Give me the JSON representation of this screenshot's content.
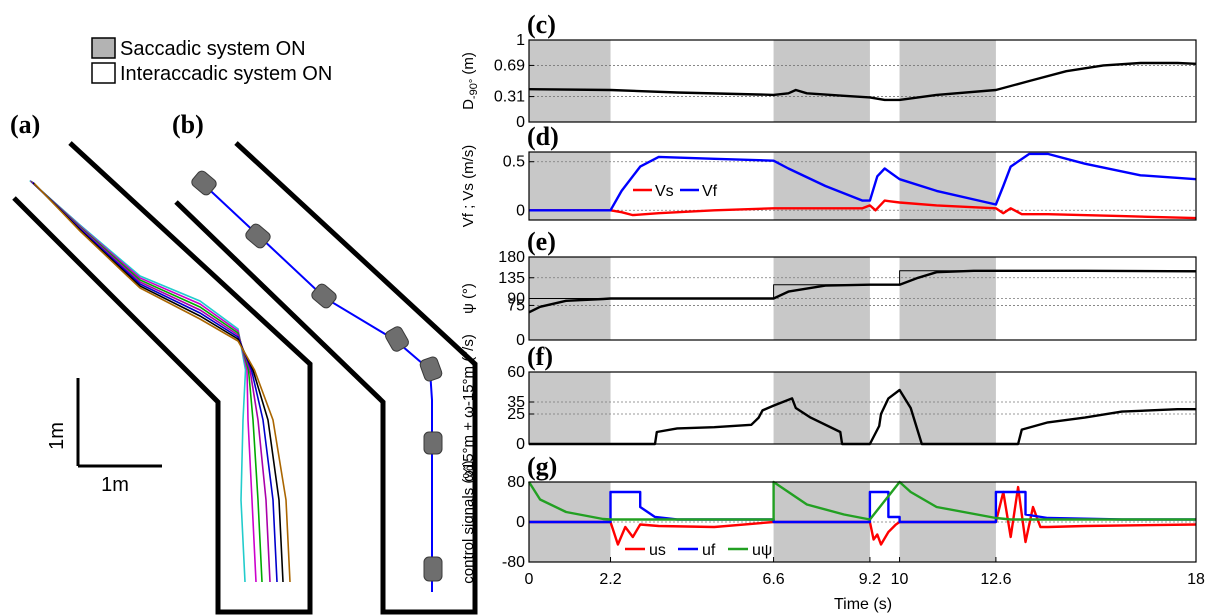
{
  "legend": {
    "saccadic_label": "Saccadic system ON",
    "intersaccadic_label": "Interaccadic system ON",
    "saccadic_color": "#b3b3b3"
  },
  "panel_labels": {
    "a": "(a)",
    "b": "(b)",
    "c": "(c)",
    "d": "(d)",
    "e": "(e)",
    "f": "(f)",
    "g": "(g)"
  },
  "scale_bar": {
    "vertical_label": "1m",
    "horizontal_label": "1m"
  },
  "xlabel": "Time (s)",
  "x_ticks": [
    "0",
    "2.2",
    "6.6",
    "9.2",
    "10",
    "12.6",
    "18"
  ],
  "saccadic_intervals": [
    [
      0,
      2.2
    ],
    [
      6.6,
      9.2
    ],
    [
      10,
      12.6
    ]
  ],
  "colors": {
    "black": "#000000",
    "red": "#ff0000",
    "blue": "#0000ff",
    "green": "#22a022",
    "shade": "#c8c8c8"
  },
  "chart_data": [
    {
      "panel": "(c)",
      "type": "line",
      "ylabel": "D-90° (m)",
      "ylabel_main": "D",
      "ylabel_sub": "-90°",
      "ylabel_unit": " (m)",
      "ylim": [
        0,
        1
      ],
      "yticks": [
        "0",
        "0.31",
        "0.69",
        "1"
      ],
      "grid_y": [
        0.31,
        0.69
      ],
      "series": [
        {
          "color": "#000000",
          "x": [
            0,
            2.2,
            4,
            6.6,
            7,
            7.2,
            7.5,
            8.5,
            9.2,
            9.6,
            10,
            11,
            12.6,
            13.5,
            14.5,
            15.5,
            16.5,
            17.5,
            18
          ],
          "y": [
            0.4,
            0.39,
            0.36,
            0.33,
            0.35,
            0.39,
            0.35,
            0.32,
            0.3,
            0.27,
            0.27,
            0.33,
            0.39,
            0.5,
            0.62,
            0.69,
            0.72,
            0.72,
            0.71
          ]
        }
      ]
    },
    {
      "panel": "(d)",
      "type": "line",
      "ylabel": "Vf ; Vs (m/s)",
      "ylim": [
        -0.1,
        0.6
      ],
      "yticks": [
        "0",
        "0.5"
      ],
      "grid_y": [
        0,
        0.5
      ],
      "legend": [
        "Vs",
        "Vf"
      ],
      "series": [
        {
          "name": "Vs",
          "color": "#ff0000",
          "x": [
            0,
            2.2,
            2.5,
            2.8,
            3.5,
            5,
            6.6,
            8,
            9,
            9.2,
            9.35,
            9.6,
            10,
            11,
            12.6,
            12.8,
            13,
            13.3,
            14,
            16,
            18
          ],
          "y": [
            0,
            0,
            -0.02,
            -0.05,
            -0.03,
            0,
            0.02,
            0.02,
            0.02,
            0.05,
            0,
            0.1,
            0.08,
            0.05,
            0.02,
            -0.03,
            0.02,
            -0.04,
            -0.04,
            -0.06,
            -0.08
          ]
        },
        {
          "name": "Vf",
          "color": "#0000ff",
          "x": [
            0,
            2.2,
            2.5,
            3,
            3.5,
            5,
            6.6,
            7,
            8,
            9,
            9.2,
            9.4,
            9.6,
            10,
            11,
            12.6,
            12.8,
            13,
            13.5,
            14,
            15,
            16.5,
            18
          ],
          "y": [
            0,
            0,
            0.2,
            0.45,
            0.55,
            0.53,
            0.51,
            0.43,
            0.25,
            0.1,
            0.1,
            0.35,
            0.43,
            0.32,
            0.2,
            0.06,
            0.25,
            0.45,
            0.58,
            0.58,
            0.48,
            0.36,
            0.32
          ]
        }
      ]
    },
    {
      "panel": "(e)",
      "type": "line",
      "ylabel": "ψ (°)",
      "ylim": [
        0,
        180
      ],
      "yticks": [
        "0",
        "75",
        "90",
        "135",
        "180"
      ],
      "grid_y": [
        75,
        90,
        135
      ],
      "series": [
        {
          "name": "psi_ref",
          "color": "#000000",
          "thin": true,
          "x": [
            0,
            6.6,
            6.6,
            10,
            10,
            18
          ],
          "y": [
            90,
            90,
            120,
            120,
            150,
            150
          ]
        },
        {
          "name": "psi",
          "color": "#000000",
          "x": [
            0,
            0.3,
            1,
            2,
            2.2,
            4,
            6.6,
            7,
            8,
            9.2,
            10,
            10.5,
            11,
            12,
            12.6,
            15,
            18
          ],
          "y": [
            60,
            72,
            85,
            89,
            90,
            90,
            90,
            105,
            118,
            120,
            120,
            135,
            147,
            150,
            150,
            150,
            149
          ]
        }
      ]
    },
    {
      "panel": "(f)",
      "type": "line",
      "ylabel": "ω15°m + ω-15°m (°/s)",
      "ylim": [
        0,
        60
      ],
      "yticks": [
        "0",
        "25",
        "35",
        "60"
      ],
      "grid_y": [
        25,
        35
      ],
      "series": [
        {
          "color": "#000000",
          "x": [
            0,
            3.4,
            3.45,
            4,
            5,
            6,
            6.2,
            6.3,
            6.6,
            7.1,
            7.2,
            7.6,
            8.4,
            8.45,
            9.2,
            9.45,
            9.5,
            9.7,
            10,
            10.3,
            10.6,
            12.6,
            13.2,
            13.3,
            14,
            15,
            16,
            17.5,
            18
          ],
          "y": [
            0,
            0,
            10,
            13,
            14,
            16,
            22,
            28,
            32,
            38,
            30,
            22,
            10,
            0,
            0,
            15,
            25,
            38,
            45,
            30,
            0,
            0,
            0,
            12,
            18,
            22,
            27,
            29,
            29
          ]
        }
      ]
    },
    {
      "panel": "(g)",
      "type": "line",
      "ylabel": "control signals (%)",
      "ylim": [
        -80,
        80
      ],
      "yticks": [
        "-80",
        "0",
        "80"
      ],
      "grid_y": [
        0
      ],
      "legend": [
        "us",
        "uf",
        "uψ"
      ],
      "series": [
        {
          "name": "us",
          "color": "#ff0000",
          "x": [
            0,
            2.2,
            2.4,
            2.6,
            2.8,
            3,
            3.5,
            5,
            6.6,
            9.2,
            9.3,
            9.4,
            9.5,
            9.7,
            9.9,
            10,
            12.6,
            12.8,
            13,
            13.2,
            13.4,
            13.6,
            13.8,
            14,
            15,
            18
          ],
          "y": [
            0,
            0,
            -45,
            -10,
            -30,
            -5,
            -8,
            -10,
            0,
            0,
            -35,
            -25,
            -45,
            -20,
            -5,
            0,
            0,
            60,
            -30,
            70,
            -40,
            30,
            -10,
            -10,
            -8,
            -5
          ]
        },
        {
          "name": "uf",
          "color": "#0000ff",
          "x": [
            0,
            2.2,
            2.2,
            3,
            3,
            3.4,
            4,
            6.6,
            6.6,
            9.2,
            9.2,
            9.7,
            9.7,
            10,
            10,
            12.6,
            12.6,
            13.4,
            13.4,
            14,
            16,
            18
          ],
          "y": [
            0,
            0,
            60,
            60,
            30,
            10,
            5,
            5,
            0,
            0,
            60,
            60,
            10,
            10,
            0,
            0,
            60,
            60,
            15,
            8,
            5,
            5
          ]
        },
        {
          "name": "uψ",
          "color": "#22a022",
          "x": [
            0,
            0.3,
            1,
            2,
            2.2,
            5,
            6.6,
            6.6,
            7,
            7.5,
            8.5,
            9.2,
            10,
            10,
            10.3,
            11,
            12.6,
            13,
            14,
            18
          ],
          "y": [
            80,
            45,
            20,
            6,
            5,
            5,
            5,
            80,
            60,
            35,
            15,
            5,
            80,
            80,
            60,
            30,
            8,
            5,
            5,
            5
          ]
        }
      ]
    }
  ],
  "trajectories_a": [
    {
      "color": "#22cccc"
    },
    {
      "color": "#cc00cc"
    },
    {
      "color": "#00aa00"
    },
    {
      "color": "#aa00aa"
    },
    {
      "color": "#0000cc"
    },
    {
      "color": "#000000"
    },
    {
      "color": "#aa6600"
    }
  ]
}
